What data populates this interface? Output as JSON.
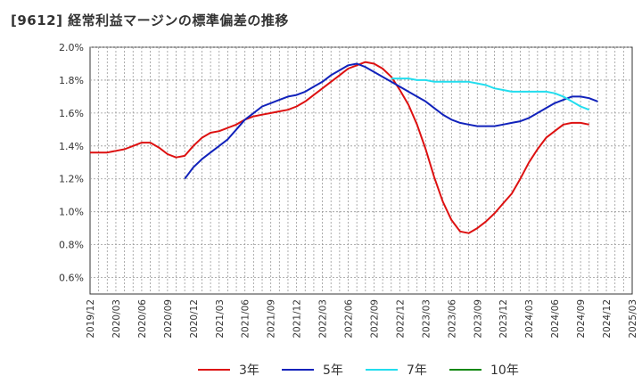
{
  "title": "[9612]  経常利益マージンの標準偏差の推移",
  "chart_data": {
    "type": "line",
    "title": "[9612]  経常利益マージンの標準偏差の推移",
    "xlabel": "",
    "ylabel": "",
    "ylim": [
      0.5,
      2.0
    ],
    "yticks": [
      "0.6%",
      "0.8%",
      "1.0%",
      "1.2%",
      "1.4%",
      "1.6%",
      "1.8%",
      "2.0%"
    ],
    "ytick_values": [
      0.6,
      0.8,
      1.0,
      1.2,
      1.4,
      1.6,
      1.8,
      2.0
    ],
    "xticks": [
      "2019/12",
      "2020/03",
      "2020/06",
      "2020/09",
      "2020/12",
      "2021/03",
      "2021/06",
      "2021/09",
      "2021/12",
      "2022/03",
      "2022/06",
      "2022/09",
      "2022/12",
      "2023/03",
      "2023/06",
      "2023/09",
      "2023/12",
      "2024/03",
      "2024/06",
      "2024/09",
      "2024/12",
      "2025/03"
    ],
    "grid": true,
    "legend_position": "bottom",
    "series": [
      {
        "name": "3年",
        "color": "#dd1111",
        "start": "2019/12",
        "values": [
          1.36,
          1.36,
          1.36,
          1.37,
          1.38,
          1.4,
          1.42,
          1.42,
          1.39,
          1.35,
          1.33,
          1.34,
          1.4,
          1.45,
          1.48,
          1.49,
          1.51,
          1.53,
          1.56,
          1.58,
          1.59,
          1.6,
          1.61,
          1.62,
          1.64,
          1.67,
          1.71,
          1.75,
          1.79,
          1.83,
          1.87,
          1.89,
          1.91,
          1.9,
          1.87,
          1.82,
          1.74,
          1.65,
          1.53,
          1.38,
          1.21,
          1.06,
          0.95,
          0.88,
          0.87,
          0.9,
          0.94,
          0.99,
          1.05,
          1.11,
          1.2,
          1.3,
          1.38,
          1.45,
          1.49,
          1.53,
          1.54,
          1.54,
          1.53
        ]
      },
      {
        "name": "5年",
        "color": "#1122bb",
        "start": "2020/11",
        "values": [
          1.2,
          1.27,
          1.32,
          1.36,
          1.4,
          1.44,
          1.5,
          1.56,
          1.6,
          1.64,
          1.66,
          1.68,
          1.7,
          1.71,
          1.73,
          1.76,
          1.79,
          1.83,
          1.86,
          1.89,
          1.9,
          1.88,
          1.85,
          1.82,
          1.79,
          1.76,
          1.73,
          1.7,
          1.67,
          1.63,
          1.59,
          1.56,
          1.54,
          1.53,
          1.52,
          1.52,
          1.52,
          1.53,
          1.54,
          1.55,
          1.57,
          1.6,
          1.63,
          1.66,
          1.68,
          1.7,
          1.7,
          1.69,
          1.67
        ]
      },
      {
        "name": "7年",
        "color": "#22ddee",
        "start": "2022/11",
        "values": [
          1.81,
          1.81,
          1.81,
          1.8,
          1.8,
          1.79,
          1.79,
          1.79,
          1.79,
          1.79,
          1.78,
          1.77,
          1.75,
          1.74,
          1.73,
          1.73,
          1.73,
          1.73,
          1.73,
          1.72,
          1.7,
          1.67,
          1.64,
          1.62
        ]
      },
      {
        "name": "10年",
        "color": "#118811",
        "start": "2024/12",
        "values": []
      }
    ]
  }
}
